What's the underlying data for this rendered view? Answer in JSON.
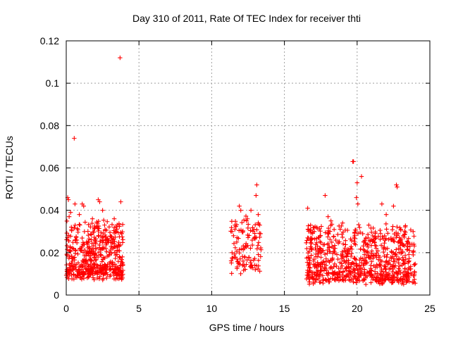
{
  "chart_data": {
    "type": "scatter",
    "title": "Day 310 of 2011, Rate Of TEC Index for receiver thti",
    "xlabel": "GPS time / hours",
    "ylabel": "ROTI / TECUs",
    "xlim": [
      0,
      25
    ],
    "ylim": [
      0,
      0.12
    ],
    "xticks": [
      0,
      5,
      10,
      15,
      20,
      25
    ],
    "xtick_labels": [
      "0",
      "5",
      "10",
      "15",
      "20",
      "25"
    ],
    "yticks": [
      0,
      0.02,
      0.04,
      0.06,
      0.08,
      0.1,
      0.12
    ],
    "ytick_labels": [
      "0",
      "0.02",
      "0.04",
      "0.06",
      "0.08",
      "0.1",
      "0.12"
    ],
    "grid": true,
    "marker": "+",
    "color": "#ff0000",
    "series": [
      {
        "name": "ROTI",
        "points": [
          [
            3.7,
            0.112
          ],
          [
            0.55,
            0.074
          ],
          [
            3.75,
            0.044
          ],
          [
            19.7,
            0.063
          ],
          [
            19.75,
            0.063
          ],
          [
            20.3,
            0.056
          ],
          [
            20.0,
            0.053
          ],
          [
            22.7,
            0.052
          ],
          [
            22.75,
            0.051
          ],
          [
            13.1,
            0.052
          ],
          [
            13.05,
            0.047
          ],
          [
            16.6,
            0.041
          ],
          [
            17.8,
            0.047
          ],
          [
            0.1,
            0.046
          ],
          [
            0.15,
            0.045
          ],
          [
            2.2,
            0.045
          ],
          [
            2.3,
            0.044
          ],
          [
            1.1,
            0.043
          ],
          [
            1.2,
            0.042
          ],
          [
            0.6,
            0.043
          ],
          [
            11.9,
            0.042
          ],
          [
            12.0,
            0.04
          ],
          [
            19.95,
            0.046
          ],
          [
            20.05,
            0.043
          ],
          [
            22.5,
            0.042
          ],
          [
            21.7,
            0.043
          ],
          [
            22.0,
            0.038
          ],
          [
            0.3,
            0.039
          ],
          [
            0.2,
            0.037
          ],
          [
            2.5,
            0.04
          ],
          [
            12.7,
            0.04
          ],
          [
            13.2,
            0.038
          ],
          [
            16.8,
            0.033
          ],
          [
            18.0,
            0.037
          ],
          [
            18.2,
            0.035
          ],
          [
            1.8,
            0.036
          ],
          [
            3.3,
            0.036
          ],
          [
            0.9,
            0.038
          ],
          [
            11.6,
            0.033
          ],
          [
            12.4,
            0.035
          ],
          [
            13.3,
            0.033
          ],
          [
            19.0,
            0.034
          ],
          [
            20.8,
            0.033
          ],
          [
            23.0,
            0.031
          ],
          [
            23.5,
            0.025
          ],
          [
            23.6,
            0.021
          ],
          [
            23.9,
            0.024
          ],
          [
            11.5,
            0.028
          ],
          [
            12.9,
            0.031
          ],
          [
            0.05,
            0.012
          ],
          [
            3.8,
            0.008
          ],
          [
            13.0,
            0.012
          ],
          [
            11.4,
            0.02
          ],
          [
            16.6,
            0.027
          ],
          [
            23.8,
            0.006
          ],
          [
            20.6,
            0.005
          ],
          [
            17.0,
            0.008
          ],
          [
            18.5,
            0.007
          ]
        ]
      }
    ],
    "clusters": [
      {
        "x": [
          0.0,
          3.9
        ],
        "y_base": [
          0.009,
          0.034
        ],
        "density": 520
      },
      {
        "x": [
          11.3,
          13.4
        ],
        "y_base": [
          0.012,
          0.036
        ],
        "density": 110
      },
      {
        "x": [
          16.5,
          24.0
        ],
        "y_base": [
          0.007,
          0.032
        ],
        "density": 760
      }
    ]
  }
}
